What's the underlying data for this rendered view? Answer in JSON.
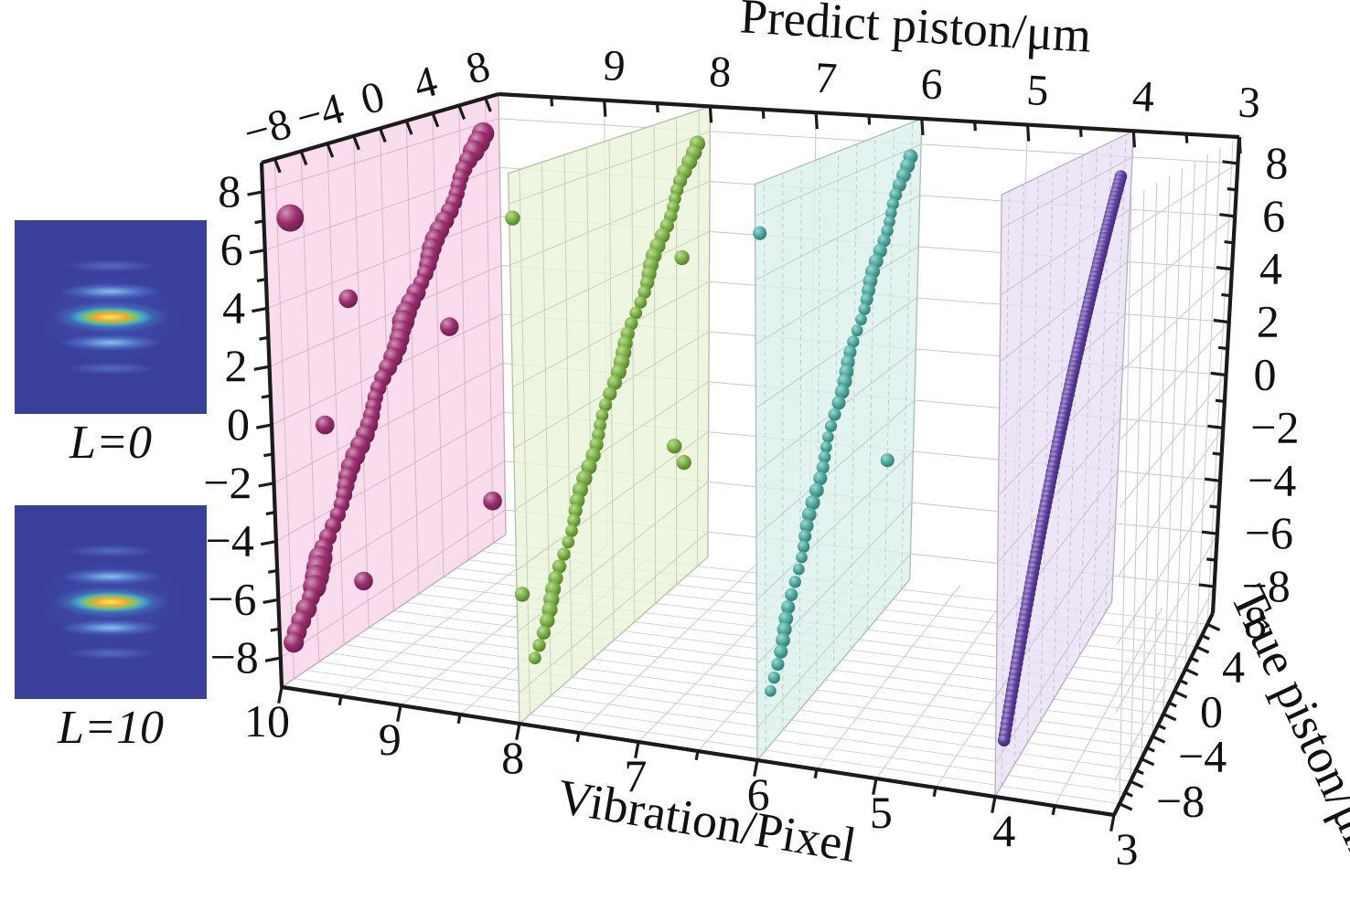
{
  "figure": {
    "axes": {
      "predict_top": {
        "label": "Predict piston/μm",
        "ticks": [
          "−8",
          "−4",
          "0",
          "4",
          "8"
        ],
        "values": [
          -8,
          -4,
          0,
          4,
          8
        ],
        "minor_step": 2,
        "range": [
          -9,
          9
        ]
      },
      "vibration_top": {
        "ticks": [
          "9",
          "8",
          "7",
          "6",
          "5",
          "4",
          "3"
        ],
        "values": [
          9,
          8,
          7,
          6,
          5,
          4,
          3
        ],
        "minor_step": 0.5
      },
      "vibration_bottom": {
        "label": "Vibration/Pixel",
        "ticks": [
          "10",
          "9",
          "8",
          "7",
          "6",
          "5",
          "4",
          "3"
        ],
        "values": [
          10,
          9,
          8,
          7,
          6,
          5,
          4,
          3
        ],
        "minor_step": 0.5,
        "range": [
          3,
          10
        ]
      },
      "piston_left": {
        "ticks": [
          "8",
          "6",
          "4",
          "2",
          "0",
          "−2",
          "−4",
          "−6",
          "−8"
        ],
        "values": [
          8,
          6,
          4,
          2,
          0,
          -2,
          -4,
          -6,
          -8
        ],
        "minor_step": 1,
        "range": [
          -9,
          9
        ]
      },
      "piston_right": {
        "ticks": [
          "8",
          "6",
          "4",
          "2",
          "0",
          "−2",
          "−4",
          "−6",
          "−8"
        ],
        "values": [
          8,
          6,
          4,
          2,
          0,
          -2,
          -4,
          -6,
          -8
        ],
        "minor_step": 1
      },
      "true_right": {
        "label": "True piston/μm",
        "ticks": [
          "8",
          "4",
          "0",
          "−4",
          "−8"
        ],
        "values": [
          8,
          4,
          0,
          -4,
          -8
        ],
        "minor_step": 1
      }
    },
    "insets": [
      {
        "label": "L=0",
        "description": "far-field pattern, no vibration"
      },
      {
        "label": "L=10",
        "description": "far-field pattern, 10 pixel vibration"
      }
    ],
    "colors": {
      "background": "#ffffff",
      "axis": "#1b1b1b",
      "grid": "#cbcbcb",
      "inset_background": "#3a3f9c",
      "inset_core": "#ffaa2e",
      "inset_fringe": "#8cc8f0"
    }
  },
  "chart_data": {
    "type": "scatter",
    "projection": "3d",
    "title": "",
    "xlabel": "Vibration/Pixel",
    "ylabel": "True piston/μm",
    "zlabel": "Predict piston/μm",
    "xlim": [
      3,
      10
    ],
    "ylim": [
      -9,
      9
    ],
    "zlim": [
      -9,
      9
    ],
    "grid": true,
    "series": [
      {
        "name": "vibration-10-pixel",
        "vibration": 10,
        "plane_color": "#f7d5e9",
        "point_color": "#9c2d6f",
        "style": "beads",
        "bead_radius": 9.8,
        "bead_step": 0.29,
        "diagonal": {
          "from": -7.8,
          "to": 7.6,
          "relation": "predict = true"
        },
        "outliers": [
          [
            -7.0,
            6.8,
            1.45
          ],
          [
            -2.8,
            3.2,
            1
          ],
          [
            -4.9,
            -0.9,
            1
          ],
          [
            4.9,
            0.5,
            1
          ],
          [
            -2.3,
            -7.2,
            1
          ],
          [
            8.0,
            -7.3,
            1
          ]
        ]
      },
      {
        "name": "vibration-8-pixel",
        "vibration": 8,
        "plane_color": "#eaf2d9",
        "point_color": "#7cb342",
        "style": "beads",
        "bead_radius": 7.8,
        "bead_step": 0.3,
        "diagonal": {
          "from": -7.5,
          "to": 7.7,
          "relation": "predict = true"
        },
        "outliers": [
          [
            -8.7,
            7.5,
            1
          ],
          [
            6.5,
            3.5,
            1
          ],
          [
            5.8,
            -3.6,
            1
          ],
          [
            6.7,
            -4.5,
            1
          ],
          [
            -8.5,
            -4.9,
            1
          ]
        ]
      },
      {
        "name": "vibration-6-pixel",
        "vibration": 6,
        "plane_color": "#dcf0ec",
        "point_color": "#4caca1",
        "style": "beads",
        "bead_radius": 7.2,
        "bead_step": 0.3,
        "diagonal": {
          "from": -7.5,
          "to": 7.7,
          "relation": "predict = true"
        },
        "outliers": [
          [
            -8.5,
            7.4,
            1
          ],
          [
            6.0,
            -3.4,
            1
          ]
        ]
      },
      {
        "name": "vibration-4-pixel",
        "vibration": 4,
        "plane_color": "#e7e0f4",
        "point_color": "#5b3b9e",
        "style": "rod",
        "bead_radius": 6.8,
        "bead_step": 0.13,
        "diagonal": {
          "from": -7.8,
          "to": 7.5,
          "relation": "predict = true"
        },
        "outliers": []
      }
    ]
  }
}
